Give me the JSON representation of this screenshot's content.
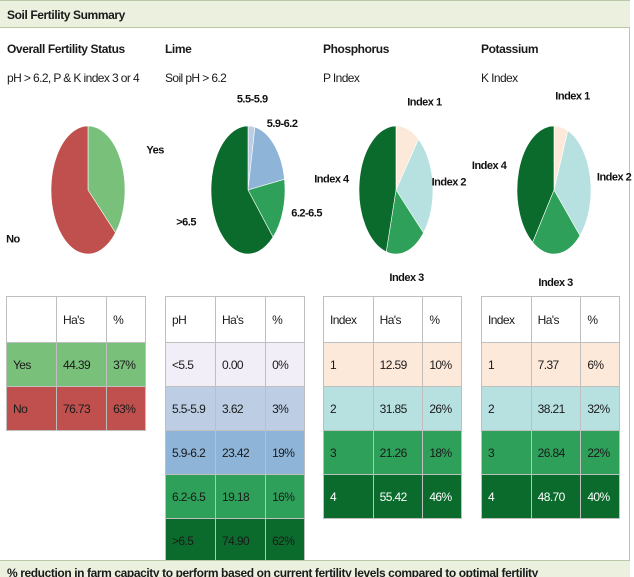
{
  "header": {
    "title": "Soil Fertility Summary"
  },
  "footer": {
    "text": "% reduction in farm capacity to perform based on current fertility levels compared to optimal fertility"
  },
  "sections": [
    {
      "title": "Overall Fertility Status",
      "subtitle": "pH > 6.2, P & K index 3 or 4",
      "table_headers": [
        "",
        "Ha's",
        "%"
      ]
    },
    {
      "title": "Lime",
      "subtitle": "Soil pH > 6.2",
      "table_headers": [
        "pH",
        "Ha's",
        "%"
      ]
    },
    {
      "title": "Phosphorus",
      "subtitle": "P Index",
      "table_headers": [
        "Index",
        "Ha's",
        "%"
      ]
    },
    {
      "title": "Potassium",
      "subtitle": "K Index",
      "table_headers": [
        "Index",
        "Ha's",
        "%"
      ]
    }
  ],
  "chart_data": [
    {
      "type": "pie",
      "title": "Overall Fertility Status",
      "categories": [
        "Yes",
        "No"
      ],
      "values": [
        44.39,
        76.73
      ],
      "percent_labels": [
        "37%",
        "63%"
      ],
      "colors": [
        "#79c07a",
        "#c0504d"
      ],
      "text_colors": [
        "#1a1a1a",
        "#1a1a1a"
      ]
    },
    {
      "type": "pie",
      "title": "Lime",
      "categories": [
        "<5.5",
        "5.5-5.9",
        "5.9-6.2",
        "6.2-6.5",
        ">6.5"
      ],
      "label_names": [
        "",
        "5.5-5.9",
        "5.9-6.2",
        "6.2-6.5",
        ">6.5"
      ],
      "values": [
        0.0,
        3.62,
        23.42,
        19.18,
        74.9
      ],
      "percent_labels": [
        "0%",
        "3%",
        "19%",
        "16%",
        "62%"
      ],
      "colors": [
        "#f2eef8",
        "#bccde4",
        "#8eb4d8",
        "#2ea05a",
        "#0b6b2d"
      ],
      "text_colors": [
        "#1a1a1a",
        "#1a1a1a",
        "#1a1a1a",
        "#1a1a1a",
        "#1a1a1a"
      ]
    },
    {
      "type": "pie",
      "title": "Phosphorus",
      "categories": [
        "1",
        "2",
        "3",
        "4"
      ],
      "label_names": [
        "Index 1",
        "Index 2",
        "Index 3",
        "Index 4"
      ],
      "values": [
        12.59,
        31.85,
        21.26,
        55.42
      ],
      "percent_labels": [
        "10%",
        "26%",
        "18%",
        "46%"
      ],
      "colors": [
        "#fde9d9",
        "#b7e1e0",
        "#2ea05a",
        "#0b6b2d"
      ],
      "text_colors": [
        "#1a1a1a",
        "#1a1a1a",
        "#1a1a1a",
        "#ffffff"
      ]
    },
    {
      "type": "pie",
      "title": "Potassium",
      "categories": [
        "1",
        "2",
        "3",
        "4"
      ],
      "label_names": [
        "Index 1",
        "Index 2",
        "Index 3",
        "Index 4"
      ],
      "values": [
        7.37,
        38.21,
        26.84,
        48.7
      ],
      "percent_labels": [
        "6%",
        "32%",
        "22%",
        "40%"
      ],
      "colors": [
        "#fde9d9",
        "#b7e1e0",
        "#2ea05a",
        "#0b6b2d"
      ],
      "text_colors": [
        "#1a1a1a",
        "#1a1a1a",
        "#1a1a1a",
        "#ffffff"
      ]
    }
  ]
}
